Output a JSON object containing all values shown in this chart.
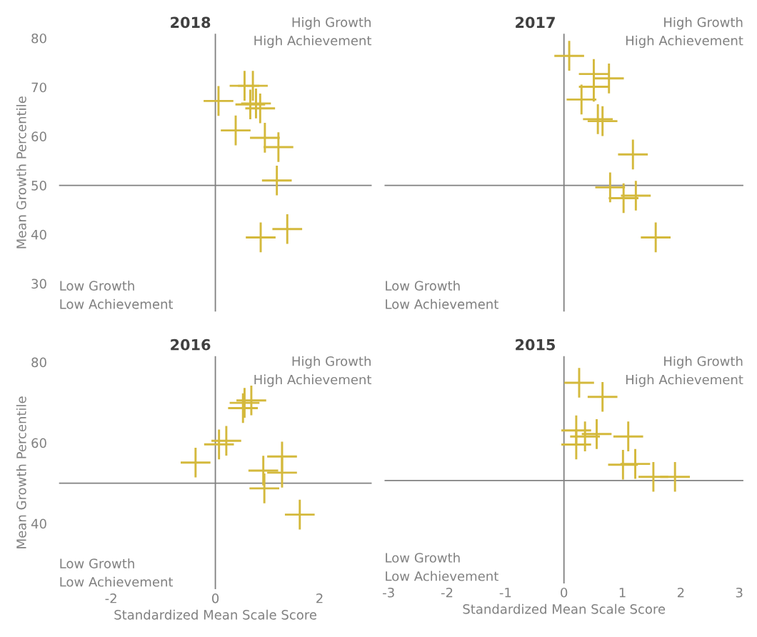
{
  "chart_data": [
    {
      "type": "scatter",
      "title": "2018",
      "ylabel": "Mean Growth Percentile",
      "xlim": [
        -3,
        3
      ],
      "ylim": [
        24.3,
        80.9
      ],
      "xticks": [
        -2,
        0,
        2
      ],
      "yticks": [
        30,
        40,
        50,
        60,
        70,
        80
      ],
      "tick_labels": "y",
      "marker": "cross",
      "grid": false,
      "ref_lines": [
        {
          "axis": "x",
          "value": 0,
          "color": "#808080"
        },
        {
          "axis": "y",
          "value": 50,
          "color": "#808080"
        }
      ],
      "annotations": [
        "High Growth\nHigh Achievement",
        "Low Growth\nLow Achievement"
      ],
      "series": [
        {
          "color": "#d4b93c",
          "x": [
            0.56,
            0.72,
            0.06,
            0.67,
            0.78,
            0.86,
            0.39,
            0.95,
            1.21,
            1.18,
            1.38,
            0.87
          ],
          "values": [
            70.3,
            70.3,
            67.2,
            66.5,
            66.7,
            65.7,
            61.2,
            59.7,
            57.8,
            51.0,
            41.1,
            39.4
          ]
        }
      ]
    },
    {
      "type": "scatter",
      "title": "2017",
      "xlim": [
        -3.07,
        3.07
      ],
      "ylim": [
        24.3,
        80.9
      ],
      "xticks": [
        -3,
        -2,
        -1,
        0,
        1,
        2,
        3
      ],
      "yticks": [
        30,
        40,
        50,
        60,
        70,
        80
      ],
      "tick_labels": false,
      "marker": "cross",
      "grid": false,
      "ref_lines": [
        {
          "axis": "x",
          "value": 0,
          "color": "#808080"
        },
        {
          "axis": "y",
          "value": 50,
          "color": "#808080"
        }
      ],
      "annotations": [
        "High Growth\nHigh Achievement",
        "Low Growth\nLow Achievement"
      ],
      "series": [
        {
          "color": "#d4b93c",
          "x": [
            0.09,
            0.51,
            0.77,
            0.51,
            0.3,
            0.58,
            0.66,
            1.18,
            0.79,
            1.02,
            1.23,
            1.57
          ],
          "values": [
            76.4,
            72.7,
            71.8,
            70.1,
            67.5,
            63.5,
            63.1,
            56.3,
            49.6,
            47.4,
            47.9,
            39.4
          ]
        }
      ]
    },
    {
      "type": "scatter",
      "title": "2016",
      "xlabel": "Standardized Mean Scale Score",
      "ylabel": "Mean Growth Percentile",
      "xlim": [
        -3,
        3
      ],
      "ylim": [
        23.7,
        81.5
      ],
      "xticks": [
        -2,
        0,
        2
      ],
      "yticks": [
        40,
        60,
        80
      ],
      "marker": "cross",
      "grid": false,
      "ref_lines": [
        {
          "axis": "x",
          "value": 0,
          "color": "#808080"
        },
        {
          "axis": "y",
          "value": 50,
          "color": "#808080"
        }
      ],
      "annotations": [
        "High Growth\nHigh Achievement",
        "Low Growth\nLow Achievement"
      ],
      "series": [
        {
          "color": "#d4b93c",
          "x": [
            0.69,
            0.56,
            0.53,
            0.21,
            0.07,
            -0.38,
            1.28,
            1.28,
            0.92,
            0.94,
            1.62
          ],
          "values": [
            70.5,
            69.9,
            68.6,
            60.5,
            59.6,
            55.1,
            56.6,
            52.6,
            53.1,
            48.7,
            42.2
          ]
        }
      ]
    },
    {
      "type": "scatter",
      "title": "2015",
      "xlabel": "Standardized Mean Scale Score",
      "xlim": [
        -3.07,
        3.07
      ],
      "ylim": [
        24.5,
        80.8
      ],
      "xticks": [
        -3,
        -2,
        -1,
        0,
        1,
        2,
        3
      ],
      "yticks": [
        40,
        60,
        80
      ],
      "tick_labels": "x",
      "marker": "cross",
      "grid": false,
      "ref_lines": [
        {
          "axis": "x",
          "value": 0,
          "color": "#808080"
        },
        {
          "axis": "y",
          "value": 50,
          "color": "#808080"
        }
      ],
      "annotations": [
        "High Growth\nHigh Achievement",
        "Low Growth\nLow Achievement"
      ],
      "series": [
        {
          "color": "#d4b93c",
          "x": [
            0.26,
            0.66,
            0.21,
            0.36,
            0.56,
            1.1,
            0.21,
            1.01,
            1.22,
            1.53,
            1.9
          ],
          "values": [
            74.2,
            70.7,
            62.4,
            60.9,
            61.5,
            60.9,
            58.9,
            53.9,
            54.1,
            50.9,
            50.9
          ]
        }
      ]
    }
  ]
}
